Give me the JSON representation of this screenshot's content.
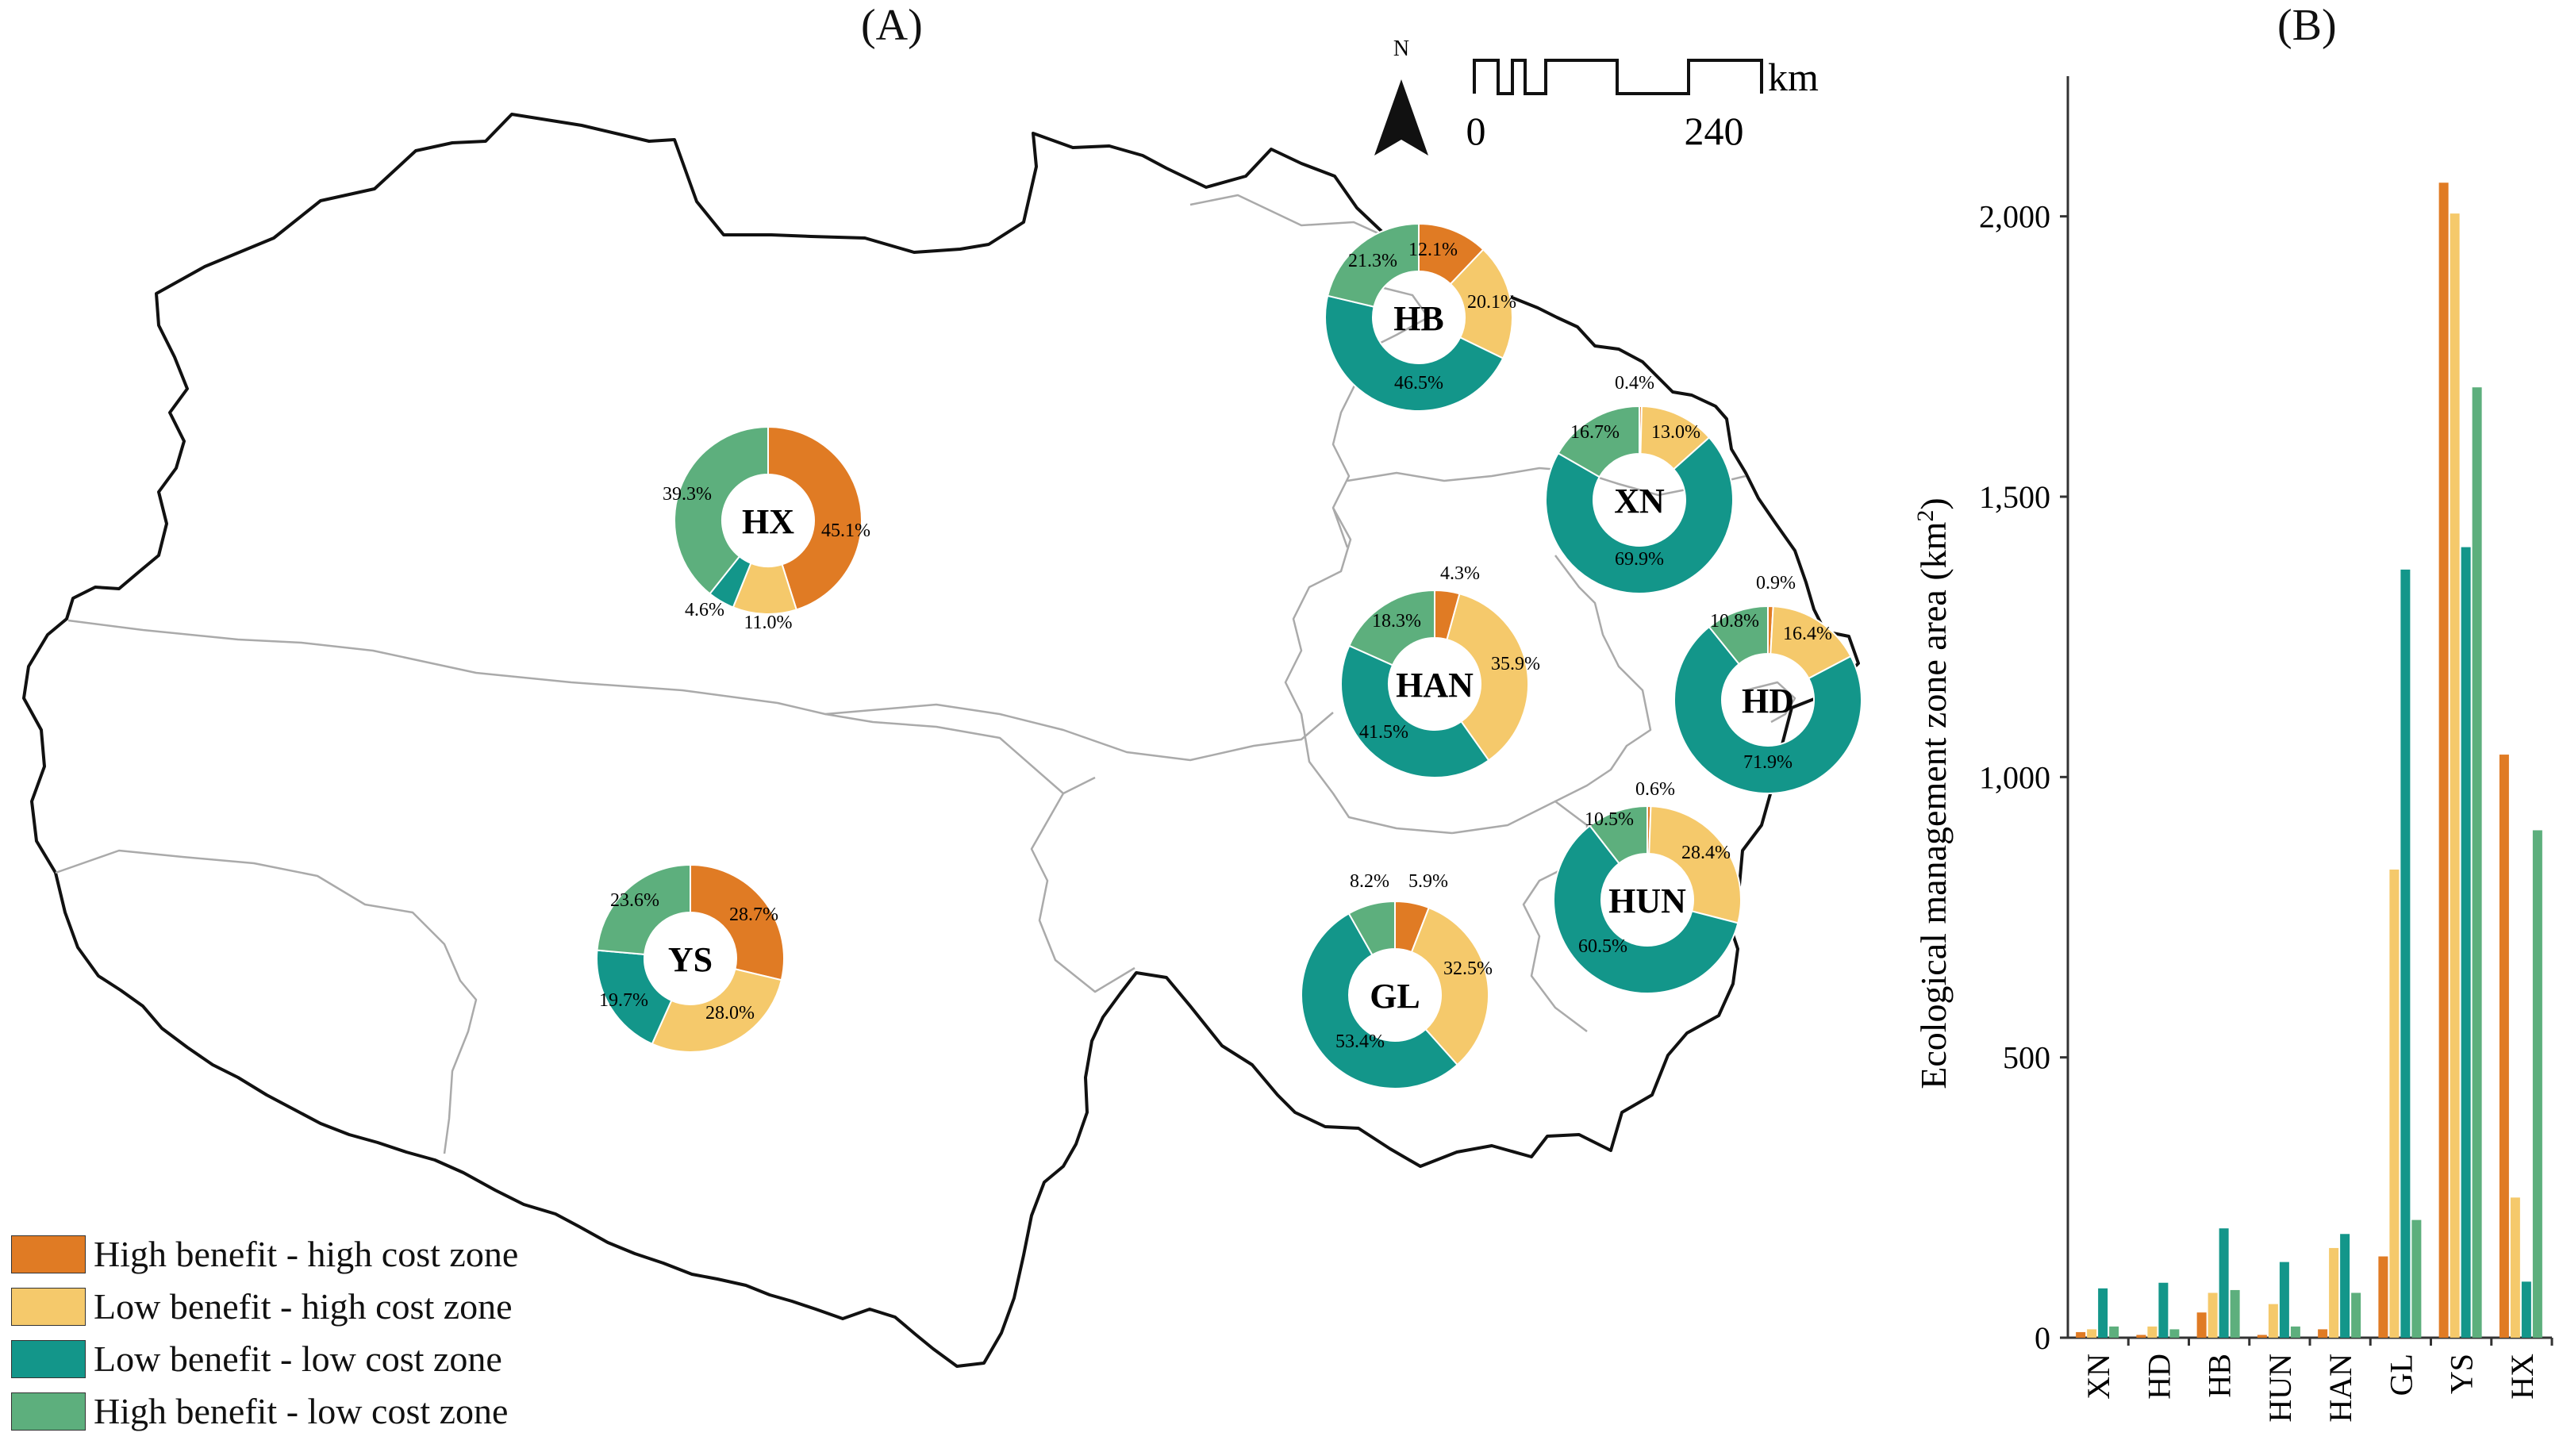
{
  "panel_a": {
    "label": "(A)",
    "north_label": "N",
    "scale": {
      "unit": "km",
      "start": "0",
      "end": "240"
    },
    "legend": [
      {
        "label": "High benefit - high cost zone",
        "color": "#e07b24"
      },
      {
        "label": "Low benefit - high cost zone",
        "color": "#f5c96b"
      },
      {
        "label": "Low benefit - low cost zone",
        "color": "#13968a"
      },
      {
        "label": "High benefit - low cost zone",
        "color": "#5daf7d"
      }
    ],
    "donuts": [
      {
        "name": "HB",
        "slices": [
          {
            "value": 12.1,
            "label": "12.1%"
          },
          {
            "value": 20.1,
            "label": "20.1%"
          },
          {
            "value": 46.5,
            "label": "46.5%"
          },
          {
            "value": 21.3,
            "label": "21.3%"
          }
        ]
      },
      {
        "name": "XN",
        "slices": [
          {
            "value": 0.4,
            "label": "0.4%"
          },
          {
            "value": 13.0,
            "label": "13.0%"
          },
          {
            "value": 69.9,
            "label": "69.9%"
          },
          {
            "value": 16.7,
            "label": "16.7%"
          }
        ]
      },
      {
        "name": "HX",
        "slices": [
          {
            "value": 45.1,
            "label": "45.1%"
          },
          {
            "value": 11.0,
            "label": "11.0%"
          },
          {
            "value": 4.6,
            "label": "4.6%"
          },
          {
            "value": 39.3,
            "label": "39.3%"
          }
        ]
      },
      {
        "name": "HAN",
        "slices": [
          {
            "value": 4.3,
            "label": "4.3%"
          },
          {
            "value": 35.9,
            "label": "35.9%"
          },
          {
            "value": 41.5,
            "label": "41.5%"
          },
          {
            "value": 18.3,
            "label": "18.3%"
          }
        ]
      },
      {
        "name": "HD",
        "slices": [
          {
            "value": 0.9,
            "label": "0.9%"
          },
          {
            "value": 16.4,
            "label": "16.4%"
          },
          {
            "value": 71.9,
            "label": "71.9%"
          },
          {
            "value": 10.8,
            "label": "10.8%"
          }
        ]
      },
      {
        "name": "HUN",
        "slices": [
          {
            "value": 0.6,
            "label": "0.6%"
          },
          {
            "value": 28.4,
            "label": "28.4%"
          },
          {
            "value": 60.5,
            "label": "60.5%"
          },
          {
            "value": 10.5,
            "label": "10.5%"
          }
        ]
      },
      {
        "name": "YS",
        "slices": [
          {
            "value": 28.7,
            "label": "28.7%"
          },
          {
            "value": 28.0,
            "label": "28.0%"
          },
          {
            "value": 19.7,
            "label": "19.7%"
          },
          {
            "value": 23.6,
            "label": "23.6%"
          }
        ]
      },
      {
        "name": "GL",
        "slices": [
          {
            "value": 5.9,
            "label": "5.9%"
          },
          {
            "value": 32.5,
            "label": "32.5%"
          },
          {
            "value": 53.4,
            "label": "53.4%"
          },
          {
            "value": 8.2,
            "label": "8.2%"
          }
        ]
      }
    ]
  },
  "chart_data": {
    "type": "bar",
    "panel_label": "(B)",
    "categories": [
      "XN",
      "HD",
      "HB",
      "HUN",
      "HAN",
      "GL",
      "YS",
      "HX"
    ],
    "ylabel": "Ecological management zone area (km",
    "ylabel_sup": "2",
    "ylabel_close": ")",
    "ylim": [
      0,
      2250
    ],
    "yticks": [
      0,
      500,
      1000,
      1500,
      2000
    ],
    "ytick_labels": [
      "0",
      "500",
      "1,000",
      "1,500",
      "2,000"
    ],
    "grid": false,
    "series": [
      {
        "name": "High benefit - high cost zone",
        "color": "#e07b24",
        "values": [
          10,
          5,
          45,
          5,
          15,
          145,
          2060,
          1040
        ]
      },
      {
        "name": "Low benefit - high cost zone",
        "color": "#f5c96b",
        "values": [
          15,
          20,
          80,
          60,
          160,
          835,
          2005,
          250
        ]
      },
      {
        "name": "Low benefit - low cost zone",
        "color": "#13968a",
        "values": [
          88,
          98,
          195,
          135,
          185,
          1370,
          1410,
          100
        ]
      },
      {
        "name": "High benefit - low cost zone",
        "color": "#5daf7d",
        "values": [
          20,
          15,
          85,
          20,
          80,
          210,
          1695,
          905
        ]
      }
    ]
  }
}
